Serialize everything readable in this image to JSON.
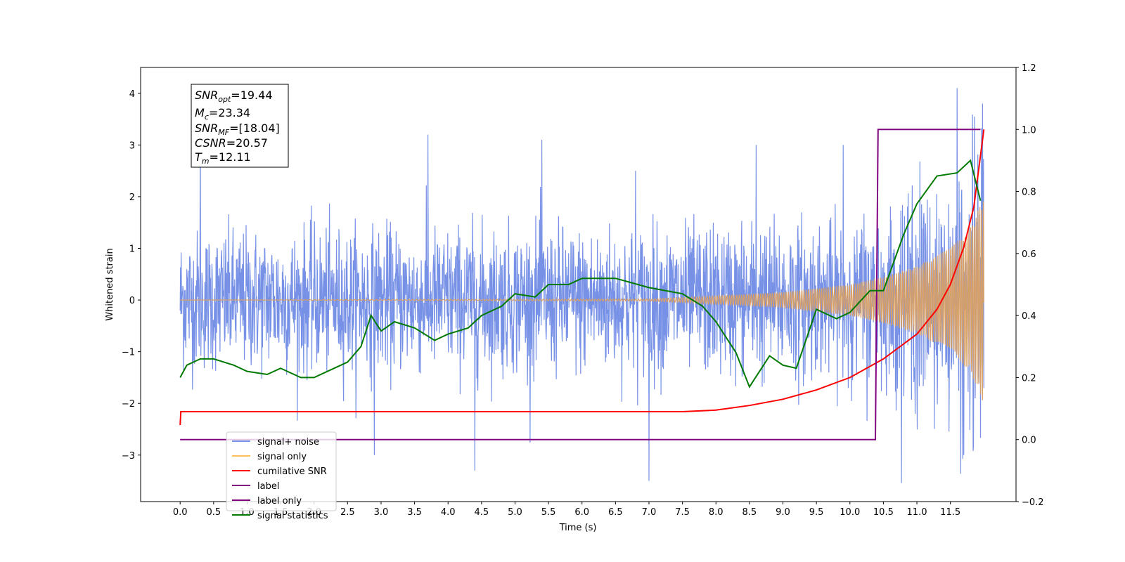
{
  "chart_data": {
    "type": "line",
    "xlabel": "Time (s)",
    "ylabel": "Whitened strain",
    "xlim": [
      -0.59,
      12.48
    ],
    "ylim": [
      -3.9,
      4.5
    ],
    "y2lim": [
      -0.2,
      1.2
    ],
    "xticks": [
      "0.0",
      "0.5",
      "1.0",
      "1.5",
      "2.0",
      "2.5",
      "3.0",
      "3.5",
      "4.0",
      "4.5",
      "5.0",
      "5.5",
      "6.0",
      "6.5",
      "7.0",
      "7.5",
      "8.0",
      "8.5",
      "9.0",
      "9.5",
      "10.0",
      "10.5",
      "11.0",
      "11.5"
    ],
    "yticks": [
      "−3",
      "−2",
      "−1",
      "0",
      "1",
      "2",
      "3",
      "4"
    ],
    "y2ticks": [
      "−0.2",
      "0.0",
      "0.2",
      "0.4",
      "0.6",
      "0.8",
      "1.0",
      "1.2"
    ],
    "annotation": {
      "snr_opt": {
        "base": "SNR",
        "sub": "opt",
        "value": "=19.44"
      },
      "mc": {
        "base": "M",
        "sub": "c",
        "value": "=23.34"
      },
      "snr_mf": {
        "base": "SNR",
        "sub": "MF",
        "value": "=[18.04]"
      },
      "csnr": {
        "base": "CSNR",
        "sub": "",
        "value": "=20.57"
      },
      "tm": {
        "base": "T",
        "sub": "m",
        "value": "=12.11"
      }
    },
    "legend": {
      "placement": "lower-left",
      "entries": [
        {
          "label": "signal+ noise",
          "color": "#7791e6"
        },
        {
          "label": "signal only",
          "color": "#ffc15e"
        },
        {
          "label": "cumilative SNR",
          "color": "#ff0000"
        },
        {
          "label": "label",
          "color": "#800080"
        },
        {
          "label": "label only",
          "color": "#800080"
        },
        {
          "label": "signal statistics",
          "color": "#007a00"
        }
      ]
    },
    "series": [
      {
        "name": "signal+ noise",
        "axis": "left",
        "color": "#7791e6",
        "x_range": [
          0.0,
          12.0
        ],
        "noise_envelope": [
          [
            0.0,
            1.2
          ],
          [
            10.0,
            1.3
          ],
          [
            12.0,
            2.0
          ]
        ],
        "peaks": [
          [
            0.3,
            3.3
          ],
          [
            2.9,
            3.3
          ],
          [
            3.7,
            3.2
          ],
          [
            5.4,
            3.1
          ],
          [
            6.8,
            2.5
          ],
          [
            8.6,
            3.0
          ],
          [
            9.9,
            3.0
          ],
          [
            11.6,
            4.1
          ],
          [
            11.98,
            3.8
          ],
          [
            7.0,
            -3.5
          ],
          [
            4.4,
            -3.3
          ],
          [
            2.9,
            -3.0
          ],
          [
            11.7,
            -3.0
          ]
        ]
      },
      {
        "name": "signal only",
        "axis": "left",
        "color": "#d8a067",
        "chirp_envelope": [
          [
            0.0,
            0.0
          ],
          [
            7.0,
            0.02
          ],
          [
            8.0,
            0.08
          ],
          [
            9.0,
            0.15
          ],
          [
            10.0,
            0.3
          ],
          [
            10.5,
            0.45
          ],
          [
            11.0,
            0.65
          ],
          [
            11.5,
            1.0
          ],
          [
            11.8,
            1.4
          ],
          [
            12.0,
            2.0
          ]
        ]
      },
      {
        "name": "cumilative SNR",
        "axis": "right",
        "color": "#ff0000",
        "x": [
          0.0,
          0.01,
          0.05,
          7.5,
          8.0,
          8.5,
          9.0,
          9.5,
          10.0,
          10.5,
          11.0,
          11.3,
          11.5,
          11.7,
          11.85,
          12.0
        ],
        "y": [
          0.047,
          0.09,
          0.09,
          0.09,
          0.095,
          0.11,
          0.13,
          0.16,
          0.2,
          0.26,
          0.34,
          0.42,
          0.5,
          0.62,
          0.75,
          1.0
        ]
      },
      {
        "name": "label",
        "axis": "right",
        "color": "#800080",
        "x": [
          0.0,
          10.38,
          10.42,
          11.95
        ],
        "y": [
          0.0,
          0.0,
          1.0,
          1.0
        ]
      },
      {
        "name": "signal statistics",
        "axis": "right",
        "color": "#007a00",
        "x": [
          0.0,
          0.1,
          0.3,
          0.5,
          0.8,
          1.0,
          1.3,
          1.5,
          1.8,
          2.0,
          2.3,
          2.5,
          2.7,
          2.85,
          3.0,
          3.2,
          3.5,
          3.8,
          4.0,
          4.3,
          4.5,
          4.8,
          5.0,
          5.3,
          5.5,
          5.8,
          6.0,
          6.5,
          7.0,
          7.5,
          7.8,
          8.0,
          8.3,
          8.5,
          8.8,
          9.0,
          9.2,
          9.5,
          9.8,
          10.0,
          10.3,
          10.5,
          10.8,
          11.0,
          11.3,
          11.6,
          11.8,
          11.95
        ],
        "y": [
          0.2,
          0.24,
          0.26,
          0.26,
          0.24,
          0.22,
          0.21,
          0.23,
          0.2,
          0.2,
          0.23,
          0.25,
          0.3,
          0.4,
          0.35,
          0.38,
          0.36,
          0.32,
          0.34,
          0.36,
          0.4,
          0.43,
          0.47,
          0.46,
          0.5,
          0.5,
          0.52,
          0.52,
          0.49,
          0.47,
          0.43,
          0.38,
          0.28,
          0.17,
          0.27,
          0.24,
          0.23,
          0.42,
          0.39,
          0.41,
          0.48,
          0.48,
          0.66,
          0.76,
          0.85,
          0.86,
          0.9,
          0.77
        ]
      }
    ]
  }
}
